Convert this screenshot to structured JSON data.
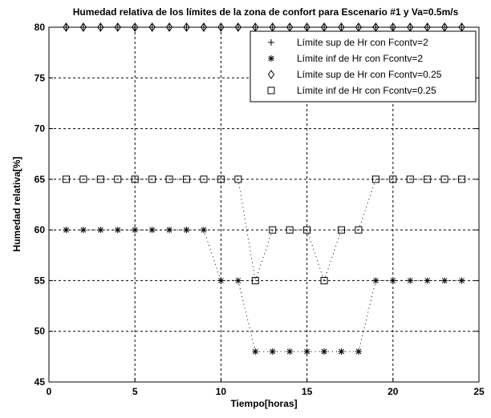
{
  "chart_data": {
    "type": "line",
    "title": "Humedad relativa de los límites de la zona de confort para Escenario #1 y Va=0.5m/s",
    "xlabel": "Tiempo[horas]",
    "ylabel": "Humedad relativa[%]",
    "xlim": [
      0,
      25
    ],
    "ylim": [
      45,
      80
    ],
    "xticks": [
      0,
      5,
      10,
      15,
      20,
      25
    ],
    "yticks": [
      45,
      50,
      55,
      60,
      65,
      70,
      75,
      80
    ],
    "grid": true,
    "legend_position": "top-right",
    "x": [
      1,
      2,
      3,
      4,
      5,
      6,
      7,
      8,
      9,
      10,
      11,
      12,
      13,
      14,
      15,
      16,
      17,
      18,
      19,
      20,
      21,
      22,
      23,
      24
    ],
    "series": [
      {
        "name": "Límite sup de Hr con Fcontv=2",
        "marker": "plus",
        "values": [
          80,
          80,
          80,
          80,
          80,
          80,
          80,
          80,
          80,
          80,
          80,
          80,
          80,
          80,
          80,
          80,
          80,
          80,
          80,
          80,
          80,
          80,
          80,
          80
        ]
      },
      {
        "name": "Límite inf de Hr con Fcontv=2",
        "marker": "asterisk",
        "values": [
          60,
          60,
          60,
          60,
          60,
          60,
          60,
          60,
          60,
          55,
          55,
          48,
          48,
          48,
          48,
          48,
          48,
          48,
          55,
          55,
          55,
          55,
          55,
          55
        ]
      },
      {
        "name": "Límite sup de Hr con Fcontv=0.25",
        "marker": "diamond",
        "values": [
          80,
          80,
          80,
          80,
          80,
          80,
          80,
          80,
          80,
          80,
          80,
          80,
          80,
          80,
          80,
          80,
          80,
          80,
          80,
          80,
          80,
          80,
          80,
          80
        ]
      },
      {
        "name": "Límite inf de Hr con Fcontv=0.25",
        "marker": "square",
        "values": [
          65,
          65,
          65,
          65,
          65,
          65,
          65,
          65,
          65,
          65,
          65,
          55,
          60,
          60,
          60,
          55,
          60,
          60,
          65,
          65,
          65,
          65,
          65,
          65
        ]
      }
    ]
  }
}
